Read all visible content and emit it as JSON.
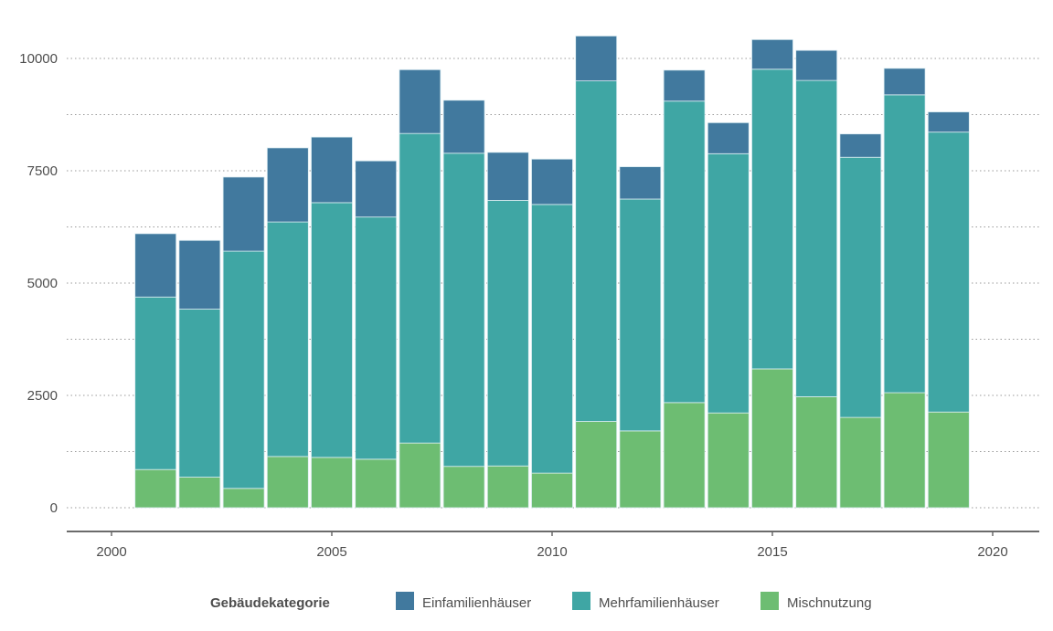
{
  "chart_data": {
    "type": "bar",
    "stacked": true,
    "title": "",
    "xlabel": "",
    "ylabel": "",
    "categories": [
      2001,
      2002,
      2003,
      2004,
      2005,
      2006,
      2007,
      2008,
      2009,
      2010,
      2011,
      2012,
      2013,
      2014,
      2015,
      2016,
      2017,
      2018,
      2019
    ],
    "series": [
      {
        "name": "Mischnutzung",
        "color": "#6dbd72",
        "values": [
          850,
          680,
          430,
          1140,
          1120,
          1080,
          1440,
          920,
          930,
          770,
          1920,
          1710,
          2340,
          2110,
          3090,
          2470,
          2010,
          2560,
          2130
        ]
      },
      {
        "name": "Mehrfamilienhäuser",
        "color": "#3fa6a4",
        "values": [
          3840,
          3740,
          5280,
          5220,
          5670,
          5390,
          6890,
          6970,
          5910,
          5980,
          7580,
          5160,
          6710,
          5770,
          6670,
          7040,
          5790,
          6630,
          6230
        ]
      },
      {
        "name": "Einfamilienhäuser",
        "color": "#41799e",
        "values": [
          1410,
          1530,
          1650,
          1650,
          1460,
          1250,
          1420,
          1180,
          1070,
          1010,
          1000,
          720,
          690,
          690,
          660,
          670,
          520,
          590,
          450
        ]
      }
    ],
    "xlim": [
      1999,
      2021
    ],
    "ylim": [
      0,
      10500
    ],
    "x_ticks": [
      2000,
      2005,
      2010,
      2015,
      2020
    ],
    "y_ticks": [
      0,
      2500,
      5000,
      7500,
      10000
    ],
    "y_minor_gridlines": [
      1250,
      3750,
      6250,
      8750
    ],
    "grid": true,
    "legend": {
      "title": "Gebäudekategorie",
      "placement": "bottom",
      "entries": [
        {
          "label": "Einfamilienhäuser",
          "color": "#41799e"
        },
        {
          "label": "Mehrfamilienhäuser",
          "color": "#3fa6a4"
        },
        {
          "label": "Mischnutzung",
          "color": "#6dbd72"
        }
      ]
    }
  }
}
